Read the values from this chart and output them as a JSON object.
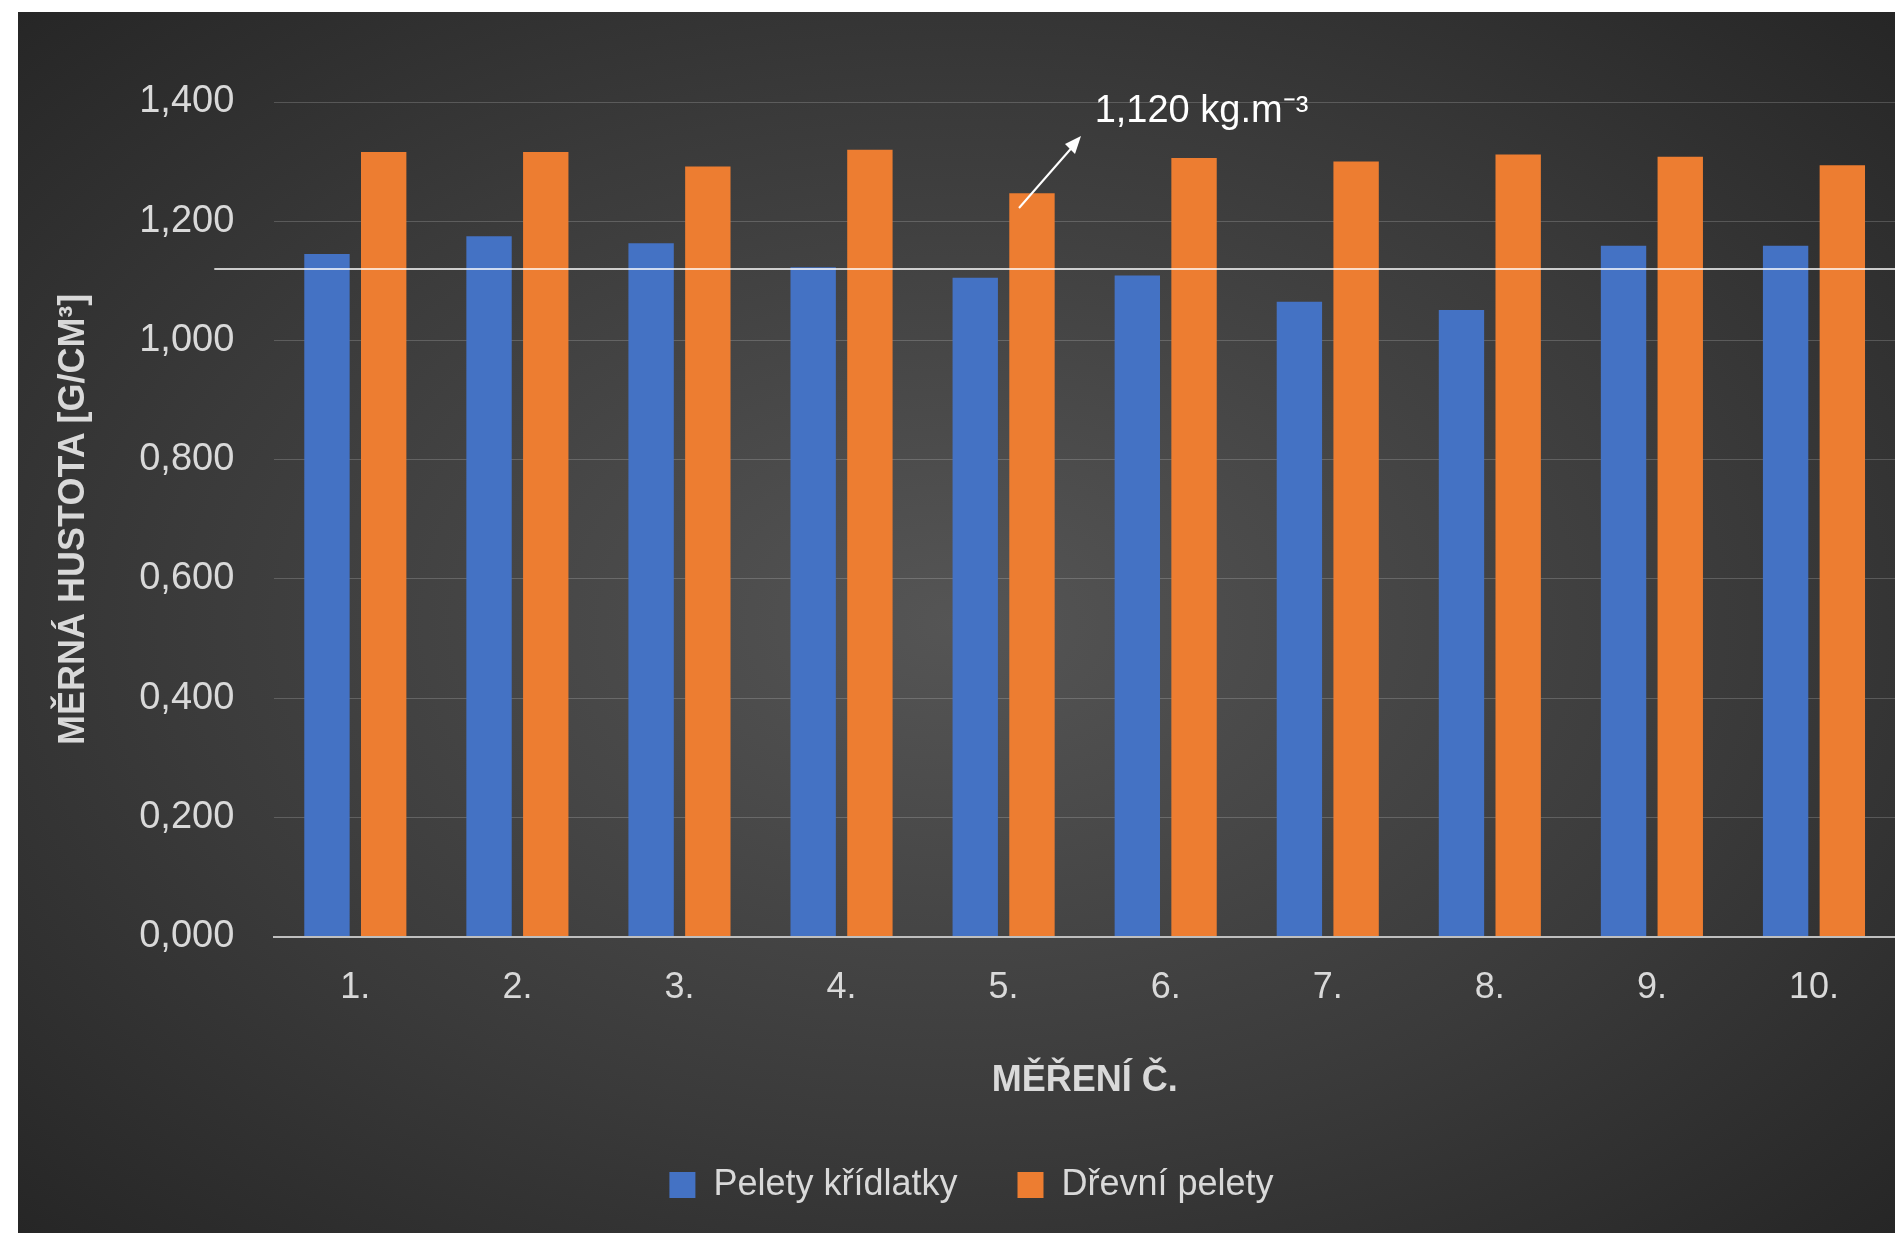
{
  "chart_data": {
    "type": "bar",
    "xlabel": "MĚŘENÍ Č.",
    "ylabel": "MĚRNÁ HUSTOTA [G/CM³]",
    "categories": [
      "1.",
      "2.",
      "3.",
      "4.",
      "5.",
      "6.",
      "7.",
      "8.",
      "9.",
      "10."
    ],
    "series": [
      {
        "name": "Pelety křídlatky",
        "color": "#4472c4",
        "values": [
          1.145,
          1.175,
          1.163,
          1.123,
          1.105,
          1.109,
          1.065,
          1.051,
          1.159,
          1.159
        ]
      },
      {
        "name": "Dřevní pelety",
        "color": "#ed7d31",
        "values": [
          1.316,
          1.316,
          1.292,
          1.32,
          1.247,
          1.306,
          1.3,
          1.312,
          1.308,
          1.294
        ]
      }
    ],
    "ylim": [
      0,
      1.4
    ],
    "yticks": [
      {
        "value": 0,
        "label": "0,000"
      },
      {
        "value": 0.2,
        "label": "0,200"
      },
      {
        "value": 0.4,
        "label": "0,400"
      },
      {
        "value": 0.6,
        "label": "0,600"
      },
      {
        "value": 0.8,
        "label": "0,800"
      },
      {
        "value": 1.0,
        "label": "1,000"
      },
      {
        "value": 1.2,
        "label": "1,200"
      },
      {
        "value": 1.4,
        "label": "1,400"
      }
    ],
    "ref_lines": [
      {
        "axis": "y",
        "value": 1.12,
        "color": "#ffffff"
      }
    ],
    "annotations": [
      "1,120 kg.m⁻³"
    ],
    "grid": "y",
    "legend": "bottom"
  }
}
